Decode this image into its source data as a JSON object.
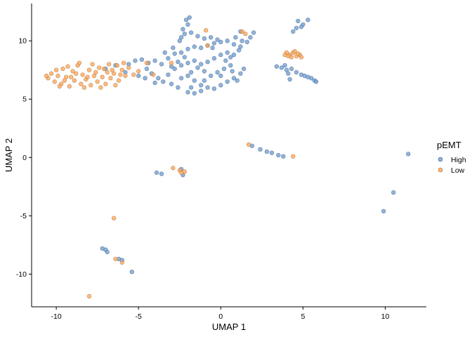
{
  "chart_data": {
    "type": "scatter",
    "xlabel": "UMAP 1",
    "ylabel": "UMAP 2",
    "xlim": [
      -11.5,
      12.5
    ],
    "ylim": [
      -12.8,
      13.2
    ],
    "x_ticks": [
      -10,
      -5,
      0,
      5,
      10
    ],
    "y_ticks": [
      -10,
      -5,
      0,
      5,
      10
    ],
    "grid": false,
    "legend": {
      "title": "pEMT",
      "position": "right",
      "entries": [
        "High",
        "Low"
      ]
    },
    "series": [
      {
        "name": "High",
        "color": "#6F9BCF",
        "points": [
          [
            -5.6,
            8.0
          ],
          [
            -5.2,
            8.3
          ],
          [
            -4.8,
            8.4
          ],
          [
            -4.4,
            8.1
          ],
          [
            -4.0,
            8.3
          ],
          [
            -3.6,
            8.0
          ],
          [
            -3.2,
            8.5
          ],
          [
            -2.8,
            8.9
          ],
          [
            -2.4,
            9.0
          ],
          [
            -2.0,
            9.3
          ],
          [
            -1.6,
            9.5
          ],
          [
            -1.2,
            9.4
          ],
          [
            -0.8,
            9.6
          ],
          [
            -0.4,
            9.8
          ],
          [
            0.0,
            9.9
          ],
          [
            0.4,
            10.0
          ],
          [
            0.8,
            9.7
          ],
          [
            1.2,
            9.5
          ],
          [
            1.6,
            9.9
          ],
          [
            1.8,
            10.3
          ],
          [
            -4.5,
            7.6
          ],
          [
            -4.2,
            7.2
          ],
          [
            -3.8,
            6.8
          ],
          [
            -4.0,
            6.4
          ],
          [
            -3.5,
            6.5
          ],
          [
            -3.2,
            7.1
          ],
          [
            -2.8,
            7.6
          ],
          [
            -2.4,
            7.9
          ],
          [
            -2.0,
            8.1
          ],
          [
            -1.6,
            8.3
          ],
          [
            -1.2,
            8.0
          ],
          [
            -0.8,
            8.2
          ],
          [
            -0.4,
            8.5
          ],
          [
            0.0,
            8.8
          ],
          [
            0.4,
            9.0
          ],
          [
            0.8,
            8.8
          ],
          [
            -2.0,
            7.0
          ],
          [
            -1.6,
            6.6
          ],
          [
            -1.2,
            6.2
          ],
          [
            -0.8,
            6.0
          ],
          [
            -0.4,
            5.9
          ],
          [
            0.0,
            6.2
          ],
          [
            0.4,
            6.5
          ],
          [
            0.8,
            6.8
          ],
          [
            1.2,
            7.2
          ],
          [
            1.4,
            7.6
          ],
          [
            -1.8,
            6.0
          ],
          [
            -2.0,
            5.6
          ],
          [
            -1.6,
            5.5
          ],
          [
            -1.2,
            5.7
          ],
          [
            -0.6,
            7.0
          ],
          [
            -0.2,
            7.3
          ],
          [
            0.2,
            7.6
          ],
          [
            0.6,
            7.9
          ],
          [
            -1.0,
            7.4
          ],
          [
            -1.4,
            7.7
          ],
          [
            -2.6,
            8.2
          ],
          [
            -3.0,
            7.8
          ],
          [
            -2.2,
            8.6
          ],
          [
            -1.8,
            7.3
          ],
          [
            -2.4,
            6.8
          ],
          [
            -1.0,
            6.6
          ],
          [
            0.0,
            7.0
          ],
          [
            0.3,
            8.3
          ],
          [
            -3.4,
            9.0
          ],
          [
            -2.9,
            9.4
          ],
          [
            -2.5,
            10.0
          ],
          [
            -2.2,
            10.6
          ],
          [
            -2.3,
            11.0
          ],
          [
            -2.0,
            11.4
          ],
          [
            -2.1,
            11.8
          ],
          [
            -1.9,
            12.0
          ],
          [
            -2.4,
            10.3
          ],
          [
            -1.8,
            10.7
          ],
          [
            -1.4,
            10.4
          ],
          [
            -1.0,
            10.2
          ],
          [
            -0.6,
            10.3
          ],
          [
            -0.2,
            10.1
          ],
          [
            -0.5,
            9.4
          ],
          [
            0.9,
            10.3
          ],
          [
            1.3,
            10.0
          ],
          [
            1.1,
            9.2
          ],
          [
            0.6,
            8.6
          ],
          [
            -3.0,
            6.3
          ],
          [
            -2.6,
            6.0
          ],
          [
            2.0,
            10.7
          ],
          [
            1.2,
            10.8
          ],
          [
            -7.0,
            7.6
          ],
          [
            -6.4,
            7.9
          ],
          [
            -5.8,
            7.3
          ],
          [
            -5.0,
            7.0
          ],
          [
            -4.6,
            6.8
          ],
          [
            0.7,
            7.4
          ],
          [
            1.0,
            6.6
          ],
          [
            4.7,
            11.7
          ],
          [
            5.3,
            11.8
          ],
          [
            5.0,
            11.4
          ],
          [
            4.9,
            11.2
          ],
          [
            4.6,
            11.1
          ],
          [
            4.4,
            10.8
          ],
          [
            3.4,
            7.8
          ],
          [
            3.7,
            7.7
          ],
          [
            4.0,
            7.5
          ],
          [
            4.1,
            7.2
          ],
          [
            4.3,
            7.6
          ],
          [
            4.6,
            7.3
          ],
          [
            4.9,
            7.1
          ],
          [
            5.1,
            7.0
          ],
          [
            5.3,
            6.9
          ],
          [
            5.5,
            6.8
          ],
          [
            5.7,
            6.6
          ],
          [
            5.8,
            6.5
          ],
          [
            4.2,
            6.7
          ],
          [
            3.9,
            7.9
          ],
          [
            1.9,
            1.0
          ],
          [
            2.4,
            0.7
          ],
          [
            2.8,
            0.5
          ],
          [
            3.1,
            0.4
          ],
          [
            3.5,
            0.2
          ],
          [
            3.8,
            0.1
          ],
          [
            11.4,
            0.3
          ],
          [
            10.5,
            -3.0
          ],
          [
            9.9,
            -4.6
          ],
          [
            -3.9,
            -1.3
          ],
          [
            -3.6,
            -1.4
          ],
          [
            -2.4,
            -1.0
          ],
          [
            -2.3,
            -1.5
          ],
          [
            -7.2,
            -7.8
          ],
          [
            -7.0,
            -7.9
          ],
          [
            -6.9,
            -8.1
          ],
          [
            -6.2,
            -8.7
          ],
          [
            -6.0,
            -8.8
          ],
          [
            -5.4,
            -9.8
          ]
        ]
      },
      {
        "name": "Low",
        "color": "#F9A65A",
        "points": [
          [
            -10.5,
            6.8
          ],
          [
            -10.3,
            7.2
          ],
          [
            -10.1,
            6.5
          ],
          [
            -9.9,
            7.0
          ],
          [
            -9.7,
            6.3
          ],
          [
            -9.6,
            7.6
          ],
          [
            -9.4,
            6.9
          ],
          [
            -9.2,
            6.1
          ],
          [
            -9.0,
            7.4
          ],
          [
            -8.9,
            6.6
          ],
          [
            -8.7,
            7.9
          ],
          [
            -8.5,
            6.3
          ],
          [
            -8.4,
            7.1
          ],
          [
            -8.2,
            6.7
          ],
          [
            -8.0,
            7.5
          ],
          [
            -7.9,
            6.2
          ],
          [
            -7.7,
            7.0
          ],
          [
            -7.5,
            6.5
          ],
          [
            -7.4,
            7.7
          ],
          [
            -7.2,
            6.9
          ],
          [
            -7.0,
            6.3
          ],
          [
            -6.9,
            7.3
          ],
          [
            -6.7,
            6.8
          ],
          [
            -6.5,
            7.2
          ],
          [
            -6.3,
            7.9
          ],
          [
            -6.2,
            6.6
          ],
          [
            -6.0,
            7.5
          ],
          [
            -5.8,
            7.0
          ],
          [
            -5.6,
            7.7
          ],
          [
            -10.0,
            7.5
          ],
          [
            -9.3,
            7.8
          ],
          [
            -8.6,
            8.1
          ],
          [
            -8.3,
            6.0
          ],
          [
            -7.8,
            8.0
          ],
          [
            -7.3,
            6.0
          ],
          [
            -6.8,
            8.0
          ],
          [
            -6.4,
            6.2
          ],
          [
            -5.9,
            8.1
          ],
          [
            -5.3,
            7.1
          ],
          [
            -9.8,
            6.1
          ],
          [
            -9.5,
            6.6
          ],
          [
            -9.1,
            6.9
          ],
          [
            -8.8,
            7.2
          ],
          [
            -8.1,
            6.9
          ],
          [
            -7.6,
            7.3
          ],
          [
            -7.1,
            7.6
          ],
          [
            -6.6,
            7.5
          ],
          [
            -6.1,
            7.1
          ],
          [
            -10.6,
            7.0
          ],
          [
            -5.0,
            7.4
          ],
          [
            -4.5,
            8.1
          ],
          [
            -4.1,
            7.1
          ],
          [
            4.0,
            9.0
          ],
          [
            4.2,
            8.8
          ],
          [
            4.4,
            9.0
          ],
          [
            4.6,
            8.7
          ],
          [
            4.8,
            8.8
          ],
          [
            4.3,
            8.6
          ],
          [
            4.5,
            9.1
          ],
          [
            4.7,
            8.9
          ],
          [
            4.1,
            8.7
          ],
          [
            4.9,
            8.6
          ],
          [
            3.9,
            8.8
          ],
          [
            1.3,
            10.8
          ],
          [
            1.5,
            10.6
          ],
          [
            -0.8,
            9.6
          ],
          [
            -3.0,
            8.1
          ],
          [
            -0.9,
            10.9
          ],
          [
            1.7,
            1.1
          ],
          [
            4.4,
            0.1
          ],
          [
            -2.9,
            -0.9
          ],
          [
            -2.5,
            -1.1
          ],
          [
            -2.2,
            -1.2
          ],
          [
            -2.4,
            -1.3
          ],
          [
            -6.5,
            -5.2
          ],
          [
            -6.4,
            -8.7
          ],
          [
            -6.0,
            -9.0
          ],
          [
            -8.0,
            -11.9
          ]
        ]
      }
    ]
  }
}
